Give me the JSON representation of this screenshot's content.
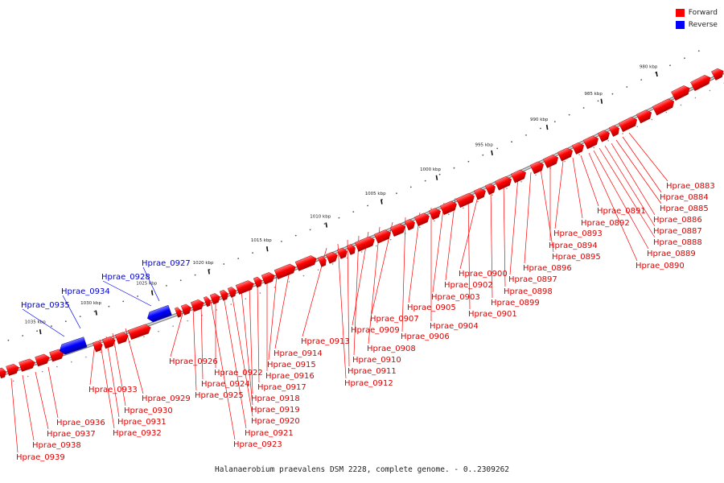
{
  "caption": "Halanaerobium praevalens DSM 2228, complete genome. - 0..2309262",
  "colors": {
    "forward": "#ff0000",
    "reverse": "#0000ff",
    "backbone": "#909090",
    "label_forward": "#dd0000",
    "label_reverse": "#0000cc"
  },
  "legend": [
    {
      "label": "Forward",
      "color": "#ff0000"
    },
    {
      "label": "Reverse",
      "color": "#0000ff"
    }
  ],
  "ticks": [
    {
      "label": "980 kbp"
    },
    {
      "label": "985 kbp"
    },
    {
      "label": "990 kbp"
    },
    {
      "label": "995 kbp"
    },
    {
      "label": "1000 kbp"
    },
    {
      "label": "1005 kbp"
    },
    {
      "label": "1010 kbp"
    },
    {
      "label": "1015 kbp"
    },
    {
      "label": "1020 kbp"
    },
    {
      "label": "1025 kbp"
    },
    {
      "label": "1030 kbp"
    },
    {
      "label": "1035 kbp"
    }
  ],
  "genes": [
    {
      "name": "Hprae_0883",
      "strand": "forward"
    },
    {
      "name": "Hprae_0884",
      "strand": "forward"
    },
    {
      "name": "Hprae_0885",
      "strand": "forward"
    },
    {
      "name": "Hprae_0886",
      "strand": "forward"
    },
    {
      "name": "Hprae_0887",
      "strand": "forward"
    },
    {
      "name": "Hprae_0888",
      "strand": "forward"
    },
    {
      "name": "Hprae_0889",
      "strand": "forward"
    },
    {
      "name": "Hprae_0890",
      "strand": "forward"
    },
    {
      "name": "Hprae_0891",
      "strand": "forward"
    },
    {
      "name": "Hprae_0892",
      "strand": "forward"
    },
    {
      "name": "Hprae_0893",
      "strand": "forward"
    },
    {
      "name": "Hprae_0894",
      "strand": "forward"
    },
    {
      "name": "Hprae_0895",
      "strand": "forward"
    },
    {
      "name": "Hprae_0896",
      "strand": "forward"
    },
    {
      "name": "Hprae_0897",
      "strand": "forward"
    },
    {
      "name": "Hprae_0898",
      "strand": "forward"
    },
    {
      "name": "Hprae_0899",
      "strand": "forward"
    },
    {
      "name": "Hprae_0900",
      "strand": "forward"
    },
    {
      "name": "Hprae_0901",
      "strand": "forward"
    },
    {
      "name": "Hprae_0902",
      "strand": "forward"
    },
    {
      "name": "Hprae_0903",
      "strand": "forward"
    },
    {
      "name": "Hprae_0904",
      "strand": "forward"
    },
    {
      "name": "Hprae_0905",
      "strand": "forward"
    },
    {
      "name": "Hprae_0906",
      "strand": "forward"
    },
    {
      "name": "Hprae_0907",
      "strand": "forward"
    },
    {
      "name": "Hprae_0908",
      "strand": "forward"
    },
    {
      "name": "Hprae_0909",
      "strand": "forward"
    },
    {
      "name": "Hprae_0910",
      "strand": "forward"
    },
    {
      "name": "Hprae_0911",
      "strand": "forward"
    },
    {
      "name": "Hprae_0912",
      "strand": "forward"
    },
    {
      "name": "Hprae_0913",
      "strand": "forward"
    },
    {
      "name": "Hprae_0914",
      "strand": "forward"
    },
    {
      "name": "Hprae_0915",
      "strand": "forward"
    },
    {
      "name": "Hprae_0916",
      "strand": "forward"
    },
    {
      "name": "Hprae_0917",
      "strand": "forward"
    },
    {
      "name": "Hprae_0918",
      "strand": "forward"
    },
    {
      "name": "Hprae_0919",
      "strand": "forward"
    },
    {
      "name": "Hprae_0920",
      "strand": "forward"
    },
    {
      "name": "Hprae_0921",
      "strand": "forward"
    },
    {
      "name": "Hprae_0922",
      "strand": "forward"
    },
    {
      "name": "Hprae_0923",
      "strand": "forward"
    },
    {
      "name": "Hprae_0924",
      "strand": "forward"
    },
    {
      "name": "Hprae_0925",
      "strand": "forward"
    },
    {
      "name": "Hprae_0926",
      "strand": "forward"
    },
    {
      "name": "Hprae_0927",
      "strand": "reverse"
    },
    {
      "name": "Hprae_0928",
      "strand": "reverse"
    },
    {
      "name": "Hprae_0929",
      "strand": "forward"
    },
    {
      "name": "Hprae_0930",
      "strand": "forward"
    },
    {
      "name": "Hprae_0931",
      "strand": "forward"
    },
    {
      "name": "Hprae_0932",
      "strand": "forward"
    },
    {
      "name": "Hprae_0933",
      "strand": "forward"
    },
    {
      "name": "Hprae_0934",
      "strand": "reverse"
    },
    {
      "name": "Hprae_0935",
      "strand": "reverse"
    },
    {
      "name": "Hprae_0936",
      "strand": "forward"
    },
    {
      "name": "Hprae_0937",
      "strand": "forward"
    },
    {
      "name": "Hprae_0938",
      "strand": "forward"
    },
    {
      "name": "Hprae_0939",
      "strand": "forward"
    }
  ]
}
